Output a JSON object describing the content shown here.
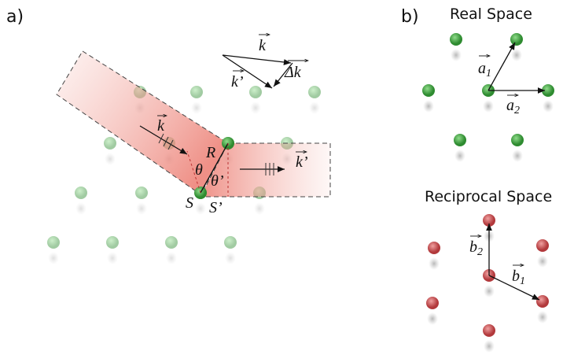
{
  "panel_a": {
    "label": "a)",
    "triangle": {
      "k": "k",
      "k_prime": "k’",
      "delta_k": "Δk"
    },
    "beam": {
      "k_in": "k",
      "k_out": "k’",
      "R": "R",
      "theta": "θ",
      "theta_prime": "θ’",
      "S": "S",
      "S_prime": "S’"
    }
  },
  "panel_b": {
    "label": "b)",
    "real_space": {
      "title": "Real Space",
      "a1": {
        "base": "a",
        "sub": "1"
      },
      "a2": {
        "base": "a",
        "sub": "2"
      }
    },
    "reciprocal_space": {
      "title": "Reciprocal Space",
      "b1": {
        "base": "b",
        "sub": "1"
      },
      "b2": {
        "base": "b",
        "sub": "2"
      }
    }
  }
}
